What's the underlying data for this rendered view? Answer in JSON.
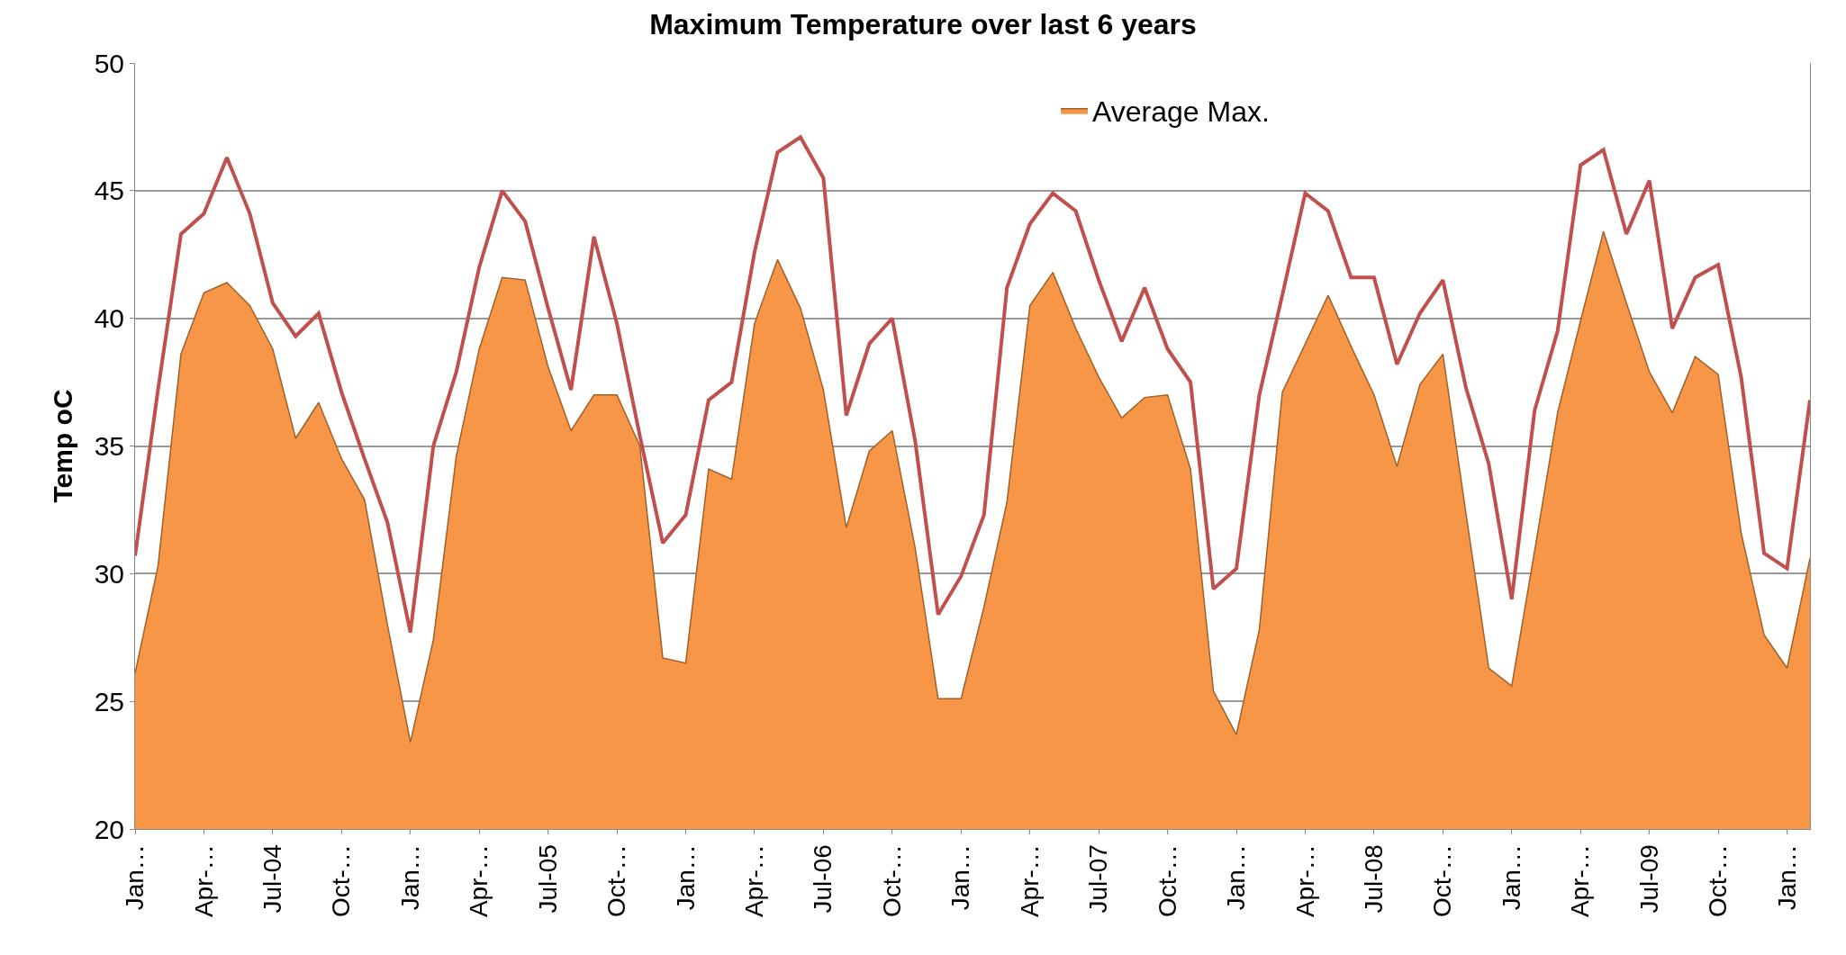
{
  "chart_data": {
    "type": "area",
    "title": "Maximum Temperature over last 6 years",
    "ylabel": "Temp oC",
    "categories": [
      "Jan…",
      null,
      null,
      "Apr-…",
      null,
      null,
      "Jul-04",
      null,
      null,
      "Oct-…",
      null,
      null,
      "Jan…",
      null,
      null,
      "Apr-…",
      null,
      null,
      "Jul-05",
      null,
      null,
      "Oct-…",
      null,
      null,
      "Jan…",
      null,
      null,
      "Apr-…",
      null,
      null,
      "Jul-06",
      null,
      null,
      "Oct-…",
      null,
      null,
      "Jan…",
      null,
      null,
      "Apr-…",
      null,
      null,
      "Jul-07",
      null,
      null,
      "Oct-…",
      null,
      null,
      "Jan…",
      null,
      null,
      "Apr-…",
      null,
      null,
      "Jul-08",
      null,
      null,
      "Oct-…",
      null,
      null,
      "Jan…",
      null,
      null,
      "Apr-…",
      null,
      null,
      "Jul-09",
      null,
      null,
      "Oct-…",
      null,
      null,
      "Jan…",
      null
    ],
    "series": [
      {
        "name": "Average Max.",
        "color": "#f79646",
        "values": [
          26.1,
          30.3,
          38.6,
          41.0,
          41.4,
          40.5,
          38.8,
          35.3,
          36.7,
          34.5,
          32.9,
          28.0,
          23.4,
          27.4,
          34.6,
          38.8,
          41.6,
          41.5,
          38.1,
          35.6,
          37.0,
          37.0,
          35.0,
          26.7,
          26.5,
          34.1,
          33.7,
          39.8,
          42.3,
          40.4,
          37.2,
          31.8,
          34.8,
          35.6,
          31.0,
          25.1,
          25.1,
          28.7,
          32.8,
          40.5,
          41.8,
          39.6,
          37.7,
          36.1,
          36.9,
          37.0,
          34.1,
          25.4,
          23.7,
          27.8,
          37.1,
          39.0,
          40.9,
          38.9,
          37.0,
          34.2,
          37.4,
          38.6,
          32.4,
          26.3,
          25.6,
          30.9,
          36.3,
          39.9,
          43.4,
          40.6,
          37.9,
          36.3,
          38.5,
          37.8,
          31.6,
          27.6,
          26.3,
          30.6
        ]
      },
      {
        "type": "line",
        "color": "#c0504d",
        "values": [
          30.7,
          37.2,
          43.3,
          44.1,
          46.3,
          44.1,
          40.6,
          39.3,
          40.2,
          37.1,
          34.5,
          32.0,
          27.7,
          35.0,
          37.9,
          42.0,
          45.0,
          43.8,
          40.4,
          37.2,
          43.2,
          39.8,
          35.4,
          31.2,
          32.3,
          36.8,
          37.5,
          42.6,
          46.5,
          47.1,
          45.5,
          36.2,
          39.0,
          40.0,
          35.2,
          28.4,
          29.9,
          32.3,
          41.2,
          43.7,
          44.9,
          44.2,
          41.5,
          39.1,
          41.2,
          38.8,
          37.5,
          29.4,
          30.2,
          37.0,
          40.9,
          44.9,
          44.2,
          41.6,
          41.6,
          38.2,
          40.2,
          41.5,
          37.3,
          34.3,
          29.0,
          36.4,
          39.5,
          46.0,
          46.6,
          43.3,
          45.4,
          39.6,
          41.6,
          42.1,
          37.7,
          30.8,
          30.2,
          36.8
        ]
      }
    ],
    "ylim": [
      20,
      50
    ],
    "yticks": [
      20,
      25,
      30,
      35,
      40,
      45,
      50
    ],
    "grid": "y",
    "legend": "top",
    "marker": "none"
  }
}
